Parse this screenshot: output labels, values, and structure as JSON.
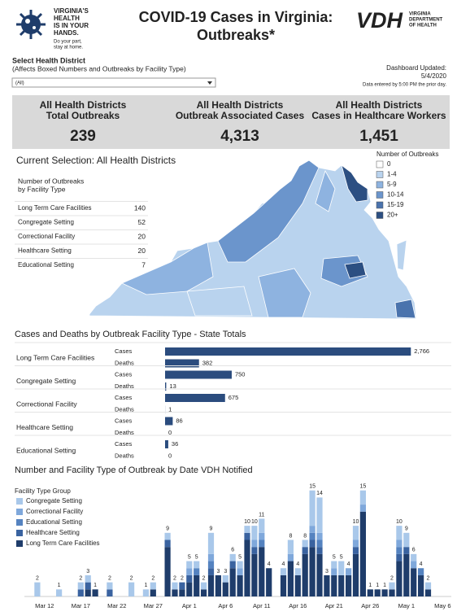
{
  "header": {
    "logo_lines": [
      "VIRGINIA'S",
      "HEALTH",
      "IS IN YOUR",
      "HANDS."
    ],
    "logo_tagline": [
      "Do your part,",
      "stay at home."
    ],
    "title": "COVID-19 Cases in Virginia:",
    "title_line2": "Outbreaks*",
    "vdh": "VDH",
    "vdh_sub": [
      "VIRGINIA",
      "DEPARTMENT",
      "OF HEALTH"
    ]
  },
  "filter": {
    "label": "Select Health District",
    "note": "(Affects Boxed Numbers and Outbreaks by Facility Type)",
    "selected": "(All)"
  },
  "updated": {
    "label": "Dashboard Updated:",
    "date": "5/4/2020",
    "note": "Data entered by 5:00 PM the prior day."
  },
  "kpis": [
    {
      "label": [
        "All Health Districts",
        "Total Outbreaks"
      ],
      "value": "239"
    },
    {
      "label": [
        "All Health Districts",
        "Outbreak Associated Cases"
      ],
      "value": "4,313"
    },
    {
      "label": [
        "All Health Districts",
        "Cases in Healthcare Workers"
      ],
      "value": "1,451"
    }
  ],
  "selection": {
    "title": "Current Selection: All Health Districts",
    "table_title": [
      "Number of Outbreaks",
      "by Facility Type"
    ],
    "rows": [
      [
        "Long Term Care Facilities",
        140
      ],
      [
        "Congregate Setting",
        52
      ],
      [
        "Correctional Facility",
        20
      ],
      [
        "Healthcare Setting",
        20
      ],
      [
        "Educational Setting",
        7
      ]
    ]
  },
  "map_legend": {
    "title": "Number of Outbreaks",
    "items": [
      {
        "label": "0",
        "color": "#ffffff"
      },
      {
        "label": "1-4",
        "color": "#b9d3ee"
      },
      {
        "label": "5-9",
        "color": "#8eb3e0"
      },
      {
        "label": "10-14",
        "color": "#6b95cc"
      },
      {
        "label": "15-19",
        "color": "#4a73ad"
      },
      {
        "label": "20+",
        "color": "#2c4f82"
      }
    ]
  },
  "chart_data": [
    {
      "type": "hbar",
      "title": "Cases and Deaths by Outbreak Facility Type - State Totals",
      "categories": [
        "Long Term Care Facilities",
        "Congregate Setting",
        "Correctional Facility",
        "Healthcare Setting",
        "Educational Setting"
      ],
      "series": [
        {
          "name": "Cases",
          "color": "#2b4c7e",
          "values": [
            2766,
            750,
            675,
            86,
            36
          ],
          "value_labels": [
            "2,766",
            "750",
            "675",
            "86",
            "36"
          ]
        },
        {
          "name": "Deaths",
          "color": "#2b4c7e",
          "values": [
            382,
            13,
            1,
            0,
            0
          ]
        }
      ],
      "xlim": [
        0,
        2800
      ]
    },
    {
      "type": "stacked-bar",
      "title": "Number and Facility Type of Outbreak by Date VDH Notified",
      "legend_title": "Facility Type Group",
      "categories": [
        null,
        null,
        "Mar 12",
        null,
        null,
        null,
        null,
        "Mar 17",
        null,
        null,
        null,
        null,
        "Mar 22",
        null,
        null,
        null,
        null,
        "Mar 27",
        null,
        null,
        null,
        null,
        "Apr 1",
        null,
        null,
        null,
        null,
        "Apr 6",
        null,
        null,
        null,
        null,
        "Apr 11",
        null,
        null,
        null,
        null,
        "Apr 16",
        null,
        null,
        null,
        null,
        "Apr 21",
        null,
        null,
        null,
        null,
        "Apr 26",
        null,
        null,
        null,
        null,
        "May 1",
        null,
        null,
        null,
        null,
        "May 6"
      ],
      "series": [
        {
          "name": "Congregate Setting",
          "color": "#a9c8ea",
          "values": [
            0,
            2,
            0,
            0,
            1,
            0,
            0,
            1,
            1,
            0,
            0,
            1,
            0,
            0,
            2,
            0,
            1,
            1,
            0,
            1,
            1,
            0,
            1,
            1,
            1,
            3,
            0,
            1,
            1,
            1,
            1,
            2,
            2,
            0,
            0,
            1,
            2,
            1,
            1,
            5,
            5,
            0,
            1,
            2,
            0,
            2,
            2,
            0,
            0,
            0,
            1,
            2,
            2,
            1,
            0,
            1,
            0,
            0
          ]
        },
        {
          "name": "Correctional Facility",
          "color": "#7fa8db",
          "values": [
            0,
            0,
            0,
            0,
            0,
            0,
            0,
            0,
            0,
            0,
            0,
            0,
            0,
            0,
            0,
            0,
            0,
            0,
            0,
            0,
            0,
            0,
            1,
            0,
            0,
            1,
            0,
            0,
            0,
            1,
            0,
            1,
            1,
            0,
            0,
            0,
            1,
            0,
            0,
            1,
            1,
            0,
            1,
            0,
            1,
            1,
            1,
            0,
            0,
            0,
            0,
            1,
            0,
            1,
            0,
            0,
            0,
            0
          ]
        },
        {
          "name": "Educational Setting",
          "color": "#5583c0",
          "values": [
            0,
            0,
            0,
            0,
            0,
            0,
            0,
            0,
            0,
            0,
            0,
            0,
            0,
            0,
            0,
            0,
            0,
            0,
            0,
            0,
            0,
            0,
            0,
            1,
            0,
            1,
            0,
            0,
            0,
            0,
            0,
            0,
            1,
            0,
            0,
            0,
            0,
            0,
            0,
            1,
            1,
            0,
            0,
            0,
            0,
            0,
            0,
            0,
            0,
            0,
            0,
            1,
            0,
            0,
            1,
            0,
            0,
            0
          ]
        },
        {
          "name": "Healthcare Setting",
          "color": "#3a63a0",
          "values": [
            0,
            0,
            0,
            0,
            0,
            0,
            0,
            1,
            1,
            0,
            0,
            1,
            0,
            0,
            0,
            0,
            0,
            0,
            0,
            1,
            0,
            1,
            1,
            0,
            0,
            1,
            0,
            0,
            1,
            0,
            1,
            1,
            0,
            0,
            0,
            0,
            0,
            0,
            1,
            1,
            1,
            0,
            0,
            0,
            0,
            1,
            0,
            0,
            0,
            0,
            0,
            1,
            1,
            0,
            0,
            0,
            0,
            0
          ]
        },
        {
          "name": "Long Term Care Facilities",
          "color": "#1f3d6b",
          "values": [
            0,
            0,
            0,
            0,
            0,
            0,
            0,
            0,
            1,
            1,
            0,
            0,
            0,
            0,
            0,
            0,
            0,
            1,
            0,
            7,
            1,
            1,
            2,
            3,
            1,
            3,
            3,
            2,
            4,
            3,
            8,
            6,
            7,
            4,
            0,
            3,
            5,
            3,
            6,
            7,
            6,
            3,
            3,
            3,
            3,
            6,
            12,
            1,
            1,
            1,
            1,
            5,
            6,
            4,
            3,
            1,
            0,
            0
          ]
        }
      ],
      "totals": [
        null,
        2,
        null,
        null,
        1,
        null,
        null,
        2,
        3,
        1,
        null,
        2,
        null,
        null,
        2,
        null,
        1,
        2,
        null,
        9,
        2,
        2,
        5,
        5,
        2,
        9,
        3,
        3,
        6,
        5,
        10,
        10,
        11,
        4,
        null,
        4,
        8,
        4,
        8,
        15,
        14,
        3,
        5,
        5,
        4,
        10,
        15,
        1,
        1,
        1,
        2,
        10,
        9,
        6,
        4,
        2,
        null,
        null
      ],
      "ylim": [
        0,
        16
      ]
    }
  ]
}
